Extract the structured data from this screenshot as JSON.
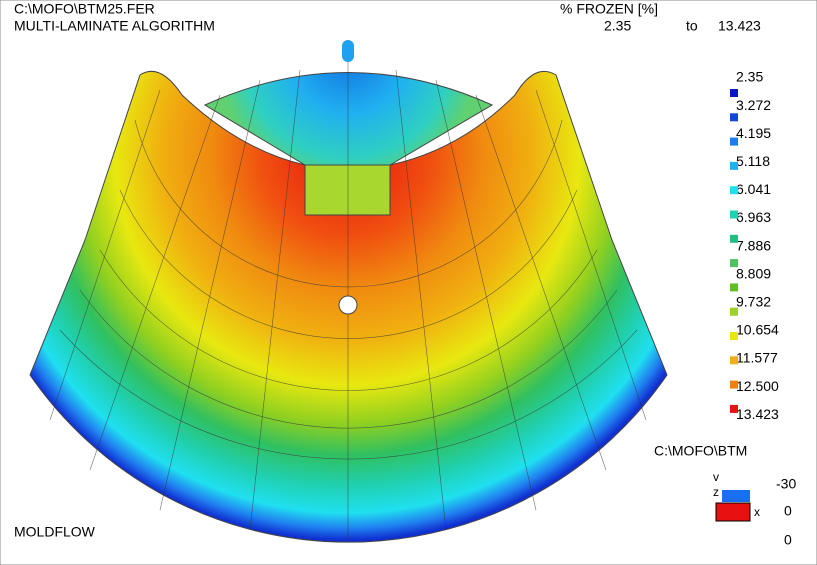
{
  "header": {
    "file": "C:\\MOFO\\BTM25.FER",
    "algorithm": "MULTI-LAMINATE ALGORITHM",
    "quantity": "% FROZEN [%]",
    "range_min": "2.35",
    "range_to": "to",
    "range_max": "13.423"
  },
  "legend": {
    "labels": [
      "2.35",
      "3.272",
      "4.195",
      "5.118",
      "6.041",
      "6.963",
      "7.886",
      "8.809",
      "9.732",
      "10.654",
      "11.577",
      "12.500",
      "13.423"
    ]
  },
  "footer": {
    "brand": "MOLDFLOW",
    "path": "C:\\MOFO\\BTM"
  },
  "triad": {
    "v": "v",
    "z": "z",
    "x": "x",
    "angle1": "-30",
    "angle2": "0",
    "angle3": "0"
  }
}
